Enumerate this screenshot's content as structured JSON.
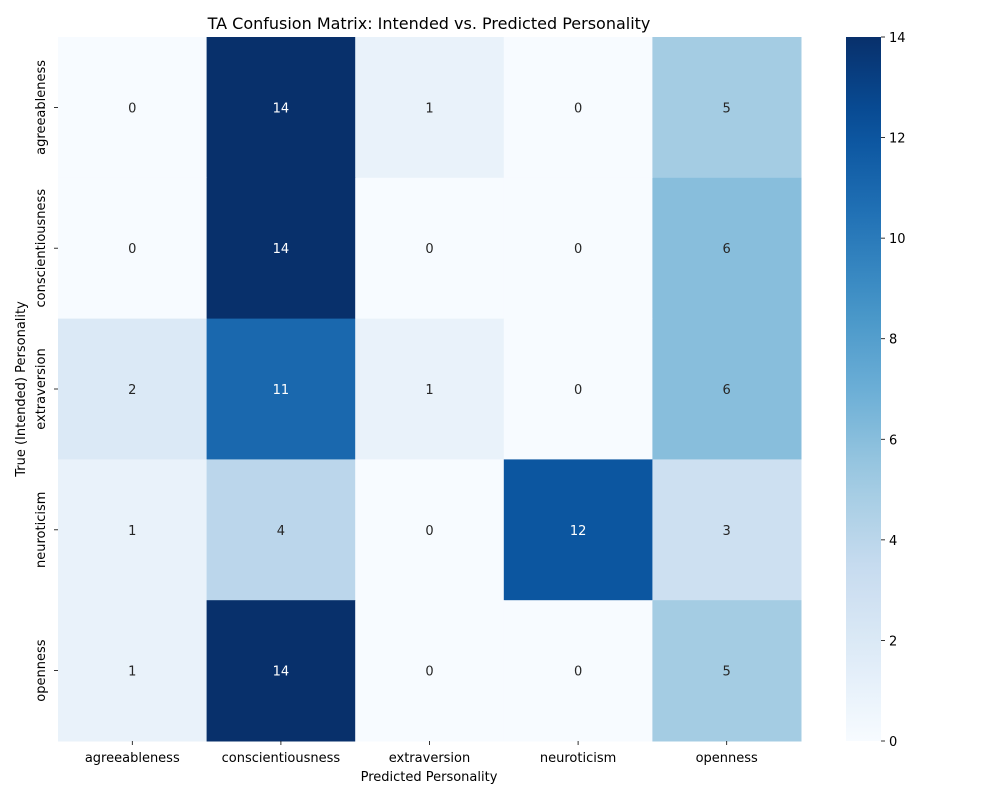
{
  "chart_data": {
    "type": "heatmap",
    "title": "TA Confusion Matrix: Intended vs. Predicted Personality",
    "xlabel": "Predicted Personality",
    "ylabel": "True (Intended) Personality",
    "x_categories": [
      "agreeableness",
      "conscientiousness",
      "extraversion",
      "neuroticism",
      "openness"
    ],
    "y_categories": [
      "agreeableness",
      "conscientiousness",
      "extraversion",
      "neuroticism",
      "openness"
    ],
    "values": [
      [
        0,
        14,
        1,
        0,
        5
      ],
      [
        0,
        14,
        0,
        0,
        6
      ],
      [
        2,
        11,
        1,
        0,
        6
      ],
      [
        1,
        4,
        0,
        12,
        3
      ],
      [
        1,
        14,
        0,
        0,
        5
      ]
    ],
    "colorbar": {
      "min": 0,
      "max": 14,
      "ticks": [
        0,
        2,
        4,
        6,
        8,
        10,
        12,
        14
      ],
      "colormap": "Blues"
    },
    "annotations": true,
    "grid": false
  }
}
